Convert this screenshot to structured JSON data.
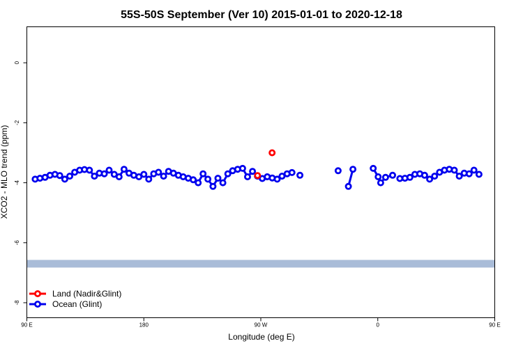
{
  "chart_data": {
    "type": "line",
    "title": "55S-50S September (Ver 10)   2015-01-01 to 2020-12-18",
    "xlabel": "Longitude (deg E)",
    "ylabel": "XCO2 - MLO trend (ppm)",
    "xlim": [
      90,
      450
    ],
    "ylim": [
      -8.5,
      1.2
    ],
    "x_ticks": [
      {
        "value": 90,
        "label": "90 E"
      },
      {
        "value": 180,
        "label": "180"
      },
      {
        "value": 270,
        "label": "90 W"
      },
      {
        "value": 360,
        "label": "0"
      },
      {
        "value": 450,
        "label": "90 E"
      },
      {
        "value": 540,
        "label": "180"
      }
    ],
    "y_ticks": [
      {
        "value": 0,
        "label": "0"
      },
      {
        "value": -2,
        "label": "-2"
      },
      {
        "value": -4,
        "label": "-4"
      },
      {
        "value": -6,
        "label": "-6"
      },
      {
        "value": -8,
        "label": "-8"
      }
    ],
    "grid": false,
    "legend_position": "bottom-left",
    "land_band": {
      "y": -6.7,
      "color": "#a9bcd8"
    },
    "series": [
      {
        "name": "Land (Nadir&Glint)",
        "color": "#ff0000",
        "segments": [
          [
            [
              267.5,
              -3.76
            ]
          ],
          [
            [
              278.7,
              -3.0
            ]
          ]
        ]
      },
      {
        "name": "Ocean (Glint)",
        "color": "#0000ee",
        "segments": [
          [
            [
              96.4,
              -3.88
            ],
            [
              100.1,
              -3.85
            ],
            [
              104.0,
              -3.82
            ],
            [
              107.8,
              -3.75
            ],
            [
              111.6,
              -3.72
            ],
            [
              115.3,
              -3.76
            ],
            [
              119.2,
              -3.88
            ],
            [
              123.0,
              -3.78
            ],
            [
              126.8,
              -3.65
            ],
            [
              130.6,
              -3.58
            ],
            [
              134.3,
              -3.56
            ],
            [
              138.2,
              -3.58
            ],
            [
              142.0,
              -3.78
            ],
            [
              145.8,
              -3.68
            ],
            [
              149.6,
              -3.7
            ],
            [
              153.3,
              -3.58
            ],
            [
              157.2,
              -3.72
            ],
            [
              161.0,
              -3.8
            ],
            [
              164.8,
              -3.55
            ],
            [
              168.6,
              -3.68
            ],
            [
              172.3,
              -3.75
            ],
            [
              176.2,
              -3.8
            ],
            [
              180.0,
              -3.72
            ],
            [
              183.8,
              -3.88
            ],
            [
              187.6,
              -3.7
            ],
            [
              191.3,
              -3.65
            ],
            [
              195.2,
              -3.78
            ],
            [
              199.0,
              -3.62
            ],
            [
              202.8,
              -3.68
            ],
            [
              206.6,
              -3.75
            ],
            [
              210.3,
              -3.8
            ],
            [
              214.2,
              -3.85
            ],
            [
              218.0,
              -3.9
            ],
            [
              221.8,
              -4.0
            ],
            [
              225.6,
              -3.7
            ],
            [
              229.3,
              -3.88
            ],
            [
              233.2,
              -4.12
            ],
            [
              237.0,
              -3.85
            ],
            [
              240.8,
              -4.0
            ],
            [
              244.6,
              -3.7
            ],
            [
              248.3,
              -3.6
            ],
            [
              252.2,
              -3.55
            ],
            [
              256.0,
              -3.52
            ],
            [
              259.8,
              -3.8
            ],
            [
              263.6,
              -3.62
            ],
            [
              267.4,
              -3.78
            ],
            [
              271.1,
              -3.86
            ],
            [
              275.0,
              -3.8
            ],
            [
              278.8,
              -3.84
            ],
            [
              282.6,
              -3.88
            ],
            [
              286.3,
              -3.78
            ],
            [
              290.2,
              -3.7
            ],
            [
              294.0,
              -3.66
            ]
          ],
          [
            [
              300.1,
              -3.75
            ]
          ],
          [
            [
              329.5,
              -3.6
            ]
          ],
          [
            [
              337.4,
              -4.12
            ],
            [
              340.9,
              -3.55
            ]
          ],
          [
            [
              356.5,
              -3.52
            ],
            [
              360.3,
              -3.8
            ],
            [
              362.2,
              -4.0
            ],
            [
              366.0,
              -3.82
            ],
            [
              371.4,
              -3.75
            ]
          ],
          [
            [
              377.0,
              -3.86
            ],
            [
              380.9,
              -3.85
            ],
            [
              384.7,
              -3.82
            ],
            [
              388.5,
              -3.72
            ],
            [
              392.3,
              -3.7
            ],
            [
              396.0,
              -3.75
            ],
            [
              399.9,
              -3.88
            ],
            [
              403.7,
              -3.78
            ],
            [
              407.5,
              -3.65
            ],
            [
              411.3,
              -3.58
            ],
            [
              415.0,
              -3.55
            ],
            [
              418.9,
              -3.58
            ],
            [
              422.7,
              -3.78
            ],
            [
              426.5,
              -3.68
            ],
            [
              430.3,
              -3.7
            ],
            [
              434.0,
              -3.58
            ],
            [
              437.9,
              -3.72
            ]
          ]
        ]
      }
    ]
  }
}
